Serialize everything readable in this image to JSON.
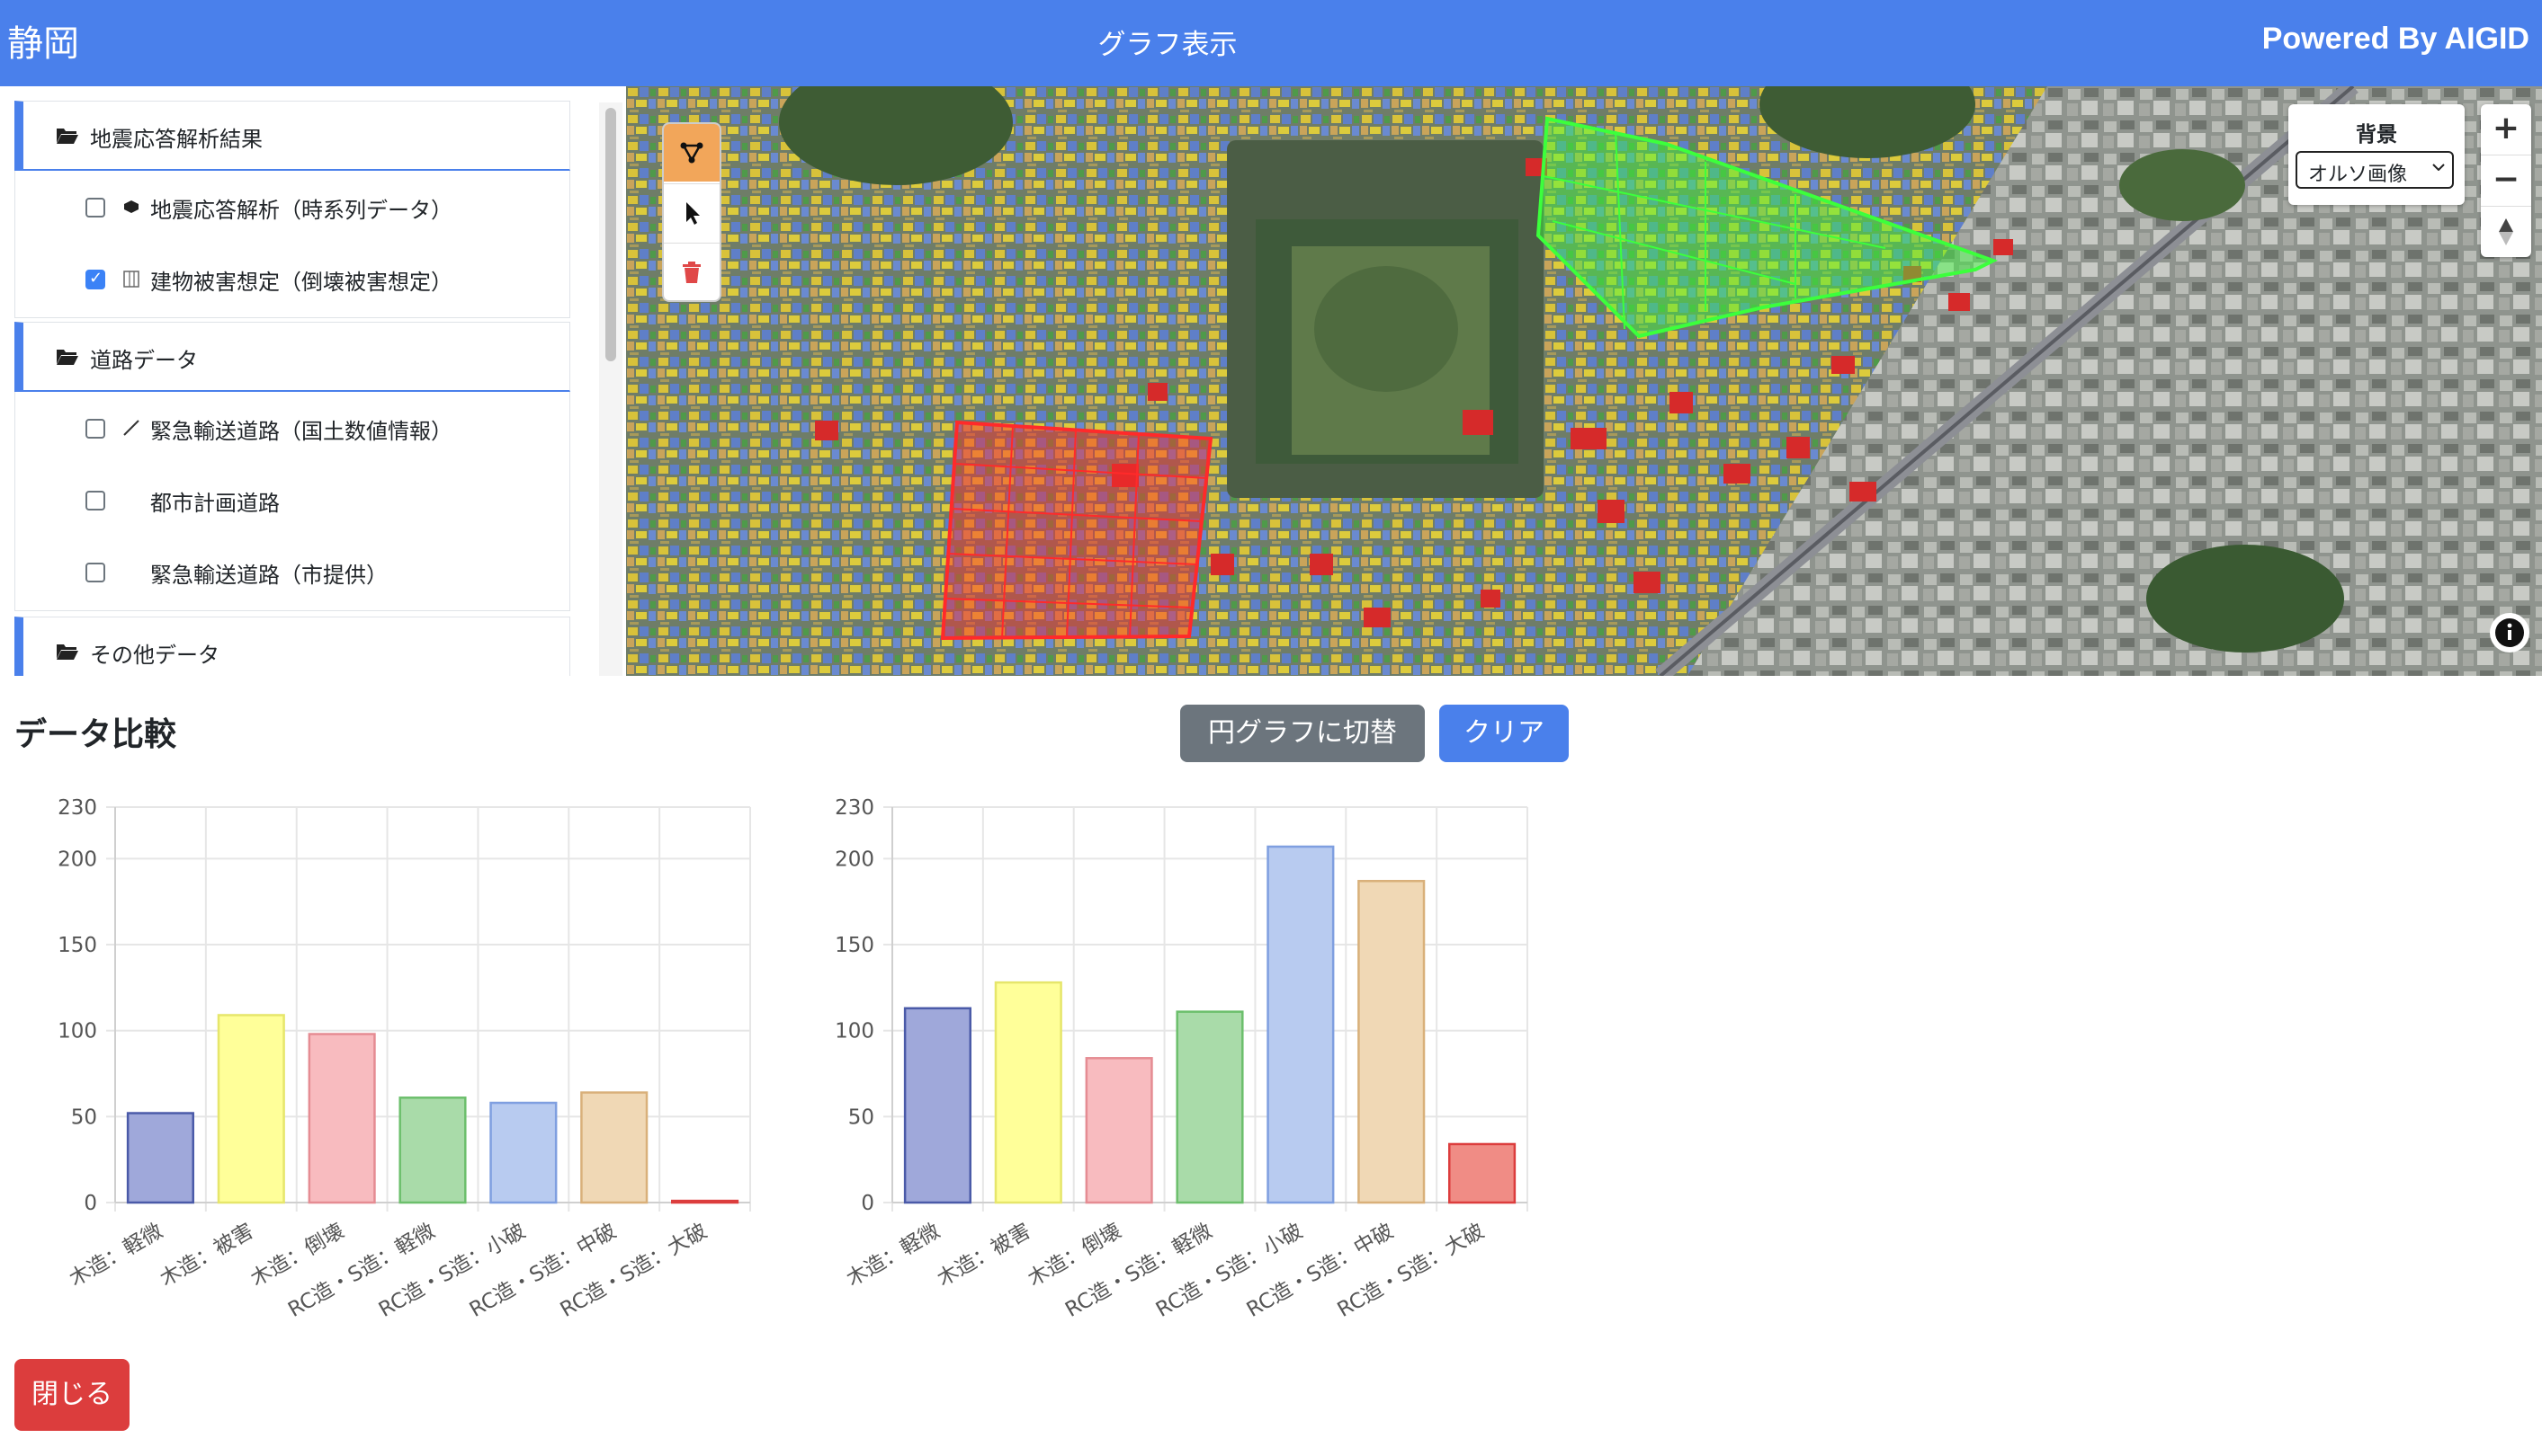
{
  "header": {
    "city": "静岡",
    "title": "グラフ表示",
    "powered_by": "Powered By AIGID"
  },
  "sidebar": {
    "panels": [
      {
        "title": "地震応答解析結果",
        "items": [
          {
            "label": "地震応答解析（時系列データ）",
            "checked": false,
            "icon": "hexagon-icon"
          },
          {
            "label": "建物被害想定（倒壊被害想定）",
            "checked": true,
            "icon": "building-icon"
          }
        ]
      },
      {
        "title": "道路データ",
        "items": [
          {
            "label": "緊急輸送道路（国土数値情報）",
            "checked": false,
            "icon": "line-icon"
          },
          {
            "label": "都市計画道路",
            "checked": false,
            "icon": ""
          },
          {
            "label": "緊急輸送道路（市提供）",
            "checked": false,
            "icon": ""
          }
        ]
      },
      {
        "title": "その他データ",
        "items": []
      }
    ]
  },
  "map": {
    "background_label": "背景",
    "background_value": "オルソ画像",
    "zoom_in": "+",
    "zoom_out": "−",
    "selection_colors": {
      "red_area": "#ff2a2a",
      "green_area": "#3cff3c"
    }
  },
  "compare": {
    "title": "データ比較",
    "toggle_button": "円グラフに切替",
    "clear_button": "クリア",
    "close_button": "閉じる"
  },
  "chart_data": [
    {
      "type": "bar",
      "categories": [
        "木造：軽微",
        "木造：被害",
        "木造：倒壊",
        "RC造・S造：軽微",
        "RC造・S造：小破",
        "RC造・S造：中破",
        "RC造・S造：大破"
      ],
      "values": [
        52,
        109,
        98,
        61,
        58,
        64,
        1
      ],
      "ylim": [
        0,
        230
      ],
      "yticks": [
        0,
        50,
        100,
        150,
        200,
        230
      ],
      "colors": [
        "#9fa8da",
        "#ffff99",
        "#f8bbbf",
        "#a9dba9",
        "#b8cbf0",
        "#f0d8b5",
        "#f08c85"
      ],
      "borders": [
        "#4a5aa8",
        "#e6e66b",
        "#e58c93",
        "#6cbf6c",
        "#7f9fe0",
        "#d9b07a",
        "#dc3d3d"
      ],
      "grid": true
    },
    {
      "type": "bar",
      "categories": [
        "木造：軽微",
        "木造：被害",
        "木造：倒壊",
        "RC造・S造：軽微",
        "RC造・S造：小破",
        "RC造・S造：中破",
        "RC造・S造：大破"
      ],
      "values": [
        113,
        128,
        84,
        111,
        207,
        187,
        34
      ],
      "ylim": [
        0,
        230
      ],
      "yticks": [
        0,
        50,
        100,
        150,
        200,
        230
      ],
      "colors": [
        "#9fa8da",
        "#ffff99",
        "#f8bbbf",
        "#a9dba9",
        "#b8cbf0",
        "#f0d8b5",
        "#f08c85"
      ],
      "borders": [
        "#4a5aa8",
        "#e6e66b",
        "#e58c93",
        "#6cbf6c",
        "#7f9fe0",
        "#d9b07a",
        "#dc3d3d"
      ],
      "grid": true
    }
  ]
}
